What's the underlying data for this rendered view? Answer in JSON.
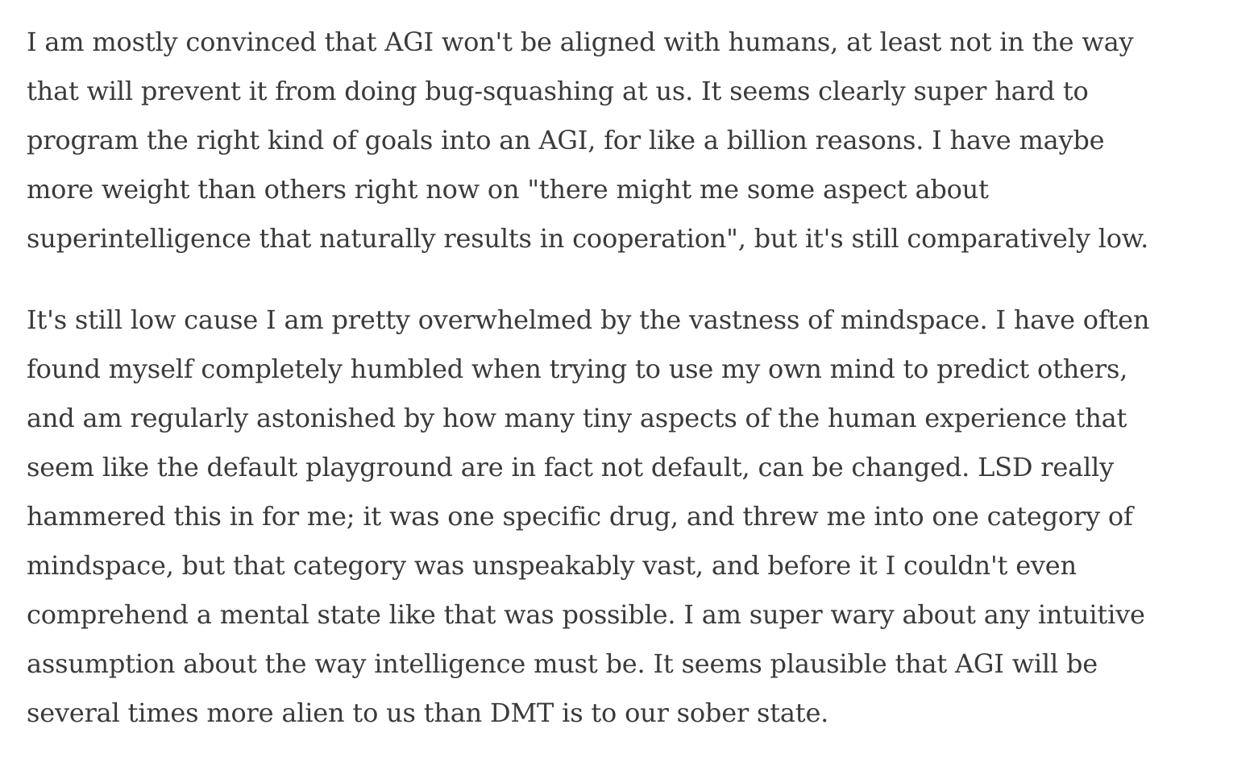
{
  "article": {
    "paragraphs": [
      {
        "lines": [
          "I am mostly convinced that AGI won't be aligned with humans, at least not in the way",
          "that will prevent it from doing bug-squashing at us. It seems clearly super hard to",
          "program the right kind of goals into an AGI, for like a billion reasons. I have maybe",
          "more weight than others right now on \"there might me some aspect about",
          "superintelligence that naturally results in cooperation\", but it's still comparatively low."
        ]
      },
      {
        "lines": [
          "It's still low cause I am pretty overwhelmed by the vastness of mindspace. I have often",
          "found myself completely humbled when trying to use my own mind to predict others,",
          "and am regularly astonished by how many tiny aspects of the human experience that",
          "seem like the default playground are in fact not default, can be changed. LSD really",
          "hammered this in for me; it was one specific drug, and threw me into one category of",
          "mindspace, but that category was unspeakably vast, and before it I couldn't even",
          "comprehend a mental state like that was possible. I am super wary about any intuitive",
          "assumption about the way intelligence must be. It seems plausible that AGI will be",
          "several times more alien to us than DMT is to our sober state."
        ]
      }
    ]
  }
}
